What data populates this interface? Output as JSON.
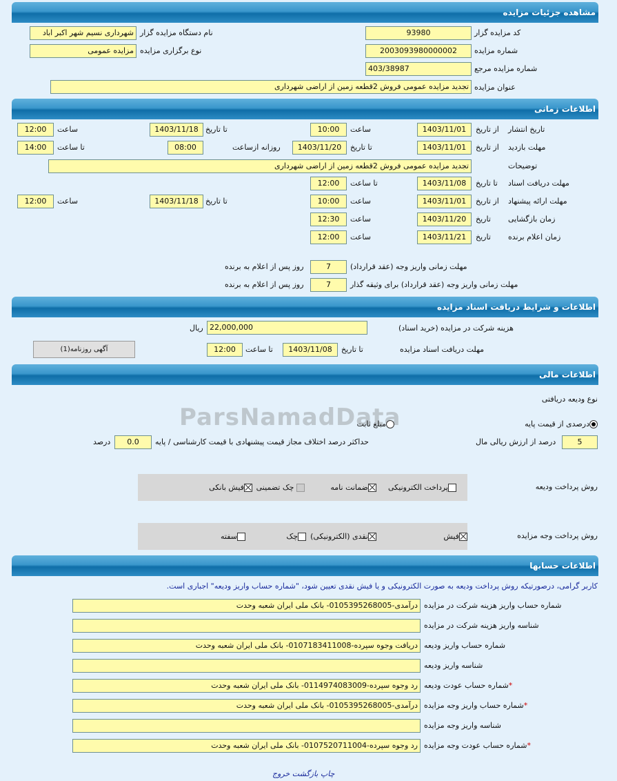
{
  "sections": {
    "details": "مشاهده جزئیات مزایده",
    "timing": "اطلاعات زمانی",
    "docs": "اطلاعات و شرایط دریافت اسناد مزایده",
    "financial": "اطلاعات مالی",
    "accounts": "اطلاعات حسابها"
  },
  "details": {
    "code_label": "کد مزایده گزار",
    "code": "93980",
    "org_label": "نام دستگاه مزایده گزار",
    "org": "شهرداری نسیم شهر اکبر اباد",
    "number_label": "شماره مزایده",
    "number": "2003093980000002",
    "type_label": "نوع برگزاری مزایده",
    "type": "مزایده عمومی",
    "ref_label": "شماره مزایده مرجع",
    "ref": "403/38987",
    "title_label": "عنوان مزایده",
    "title": "تجدید مزایده عمومی فروش 2قطعه زمین از اراضی شهرداری"
  },
  "timing": {
    "from_date": "از تاریخ",
    "to_date": "تا تاریخ",
    "date": "تاریخ",
    "time": "ساعت",
    "to_time": "تا ساعت",
    "daily_from": "روزانه ازساعت",
    "publish": {
      "label": "تاریخ انتشار",
      "from": "1403/11/01",
      "from_time": "10:00",
      "to": "1403/11/18",
      "to_time": "12:00"
    },
    "visit": {
      "label": "مهلت بازدید",
      "from": "1403/11/01",
      "to": "1403/11/20",
      "daily_from": "08:00",
      "to_time": "14:00"
    },
    "desc": {
      "label": "توضیحات",
      "value": "تجدید مزایده عمومی فروش 2قطعه زمین از اراضی شهرداری"
    },
    "doc_receive": {
      "label": "مهلت دریافت اسناد",
      "to": "1403/11/08",
      "to_time": "12:00"
    },
    "offer": {
      "label": "مهلت ارائه پیشنهاد",
      "from": "1403/11/01",
      "from_time": "10:00",
      "to": "1403/11/18",
      "to_time": "12:00"
    },
    "opening": {
      "label": "زمان بازگشایی",
      "date": "1403/11/20",
      "time": "12:30"
    },
    "winner": {
      "label": "زمان اعلام برنده",
      "date": "1403/11/21",
      "time": "12:00"
    },
    "pay_deadline": {
      "label": "مهلت زمانی واریز وجه (عقد قرارداد)",
      "value": "7",
      "suffix": "روز پس از اعلام به برنده"
    },
    "pay_deadline_guarantee": {
      "label": "مهلت زمانی واریز وجه (عقد قرارداد) برای وثیقه گذار",
      "value": "7",
      "suffix": "روز پس از اعلام به برنده"
    }
  },
  "docs": {
    "fee_label": "هزینه شرکت در مزایده (خرید اسناد)",
    "fee": "22,000,000",
    "currency": "ریال",
    "deadline_label": "مهلت دریافت اسناد مزایده",
    "to_date_label": "تا تاریخ",
    "to_date": "1403/11/08",
    "to_time_label": "تا ساعت",
    "to_time": "12:00",
    "newspaper_button": "آگهی روزنامه(1)"
  },
  "financial": {
    "deposit_type_label": "نوع ودیعه دریافتی",
    "radio_percent": "درصدی از قیمت پایه",
    "radio_percent_checked": true,
    "radio_fixed": "مبلغ ثابت",
    "radio_fixed_checked": false,
    "percent_value": "5",
    "percent_label": "درصد از ارزش ریالی مال",
    "max_diff_label": "حداکثر درصد اختلاف مجاز قیمت پیشنهادی با قیمت کارشناسی / پایه",
    "max_diff": "0.0",
    "max_diff_unit": "درصد",
    "deposit_method_label": "روش پرداخت ودیعه",
    "deposit_methods": [
      {
        "label": "پرداخت الکترونیکی",
        "checked": false
      },
      {
        "label": "ضمانت نامه",
        "checked": true
      },
      {
        "label": "چک تضمینی",
        "checked": false,
        "disabled": true
      },
      {
        "label": "فیش بانکی",
        "checked": true
      }
    ],
    "payment_method_label": "روش پرداخت وجه مزایده",
    "payment_methods": [
      {
        "label": "فیش",
        "checked": true
      },
      {
        "label": "نقدی (الکترونیکی)",
        "checked": true
      },
      {
        "label": "چک",
        "checked": false
      },
      {
        "label": "سفته",
        "checked": false
      }
    ]
  },
  "accounts": {
    "notice": "کاربر گرامی، درصورتیکه روش پرداخت ودیعه به صورت الکترونیکی و یا فیش نقدی تعیین شود، \"شماره حساب واریز ودیعه\" اجباری است.",
    "rows": [
      {
        "label": "شماره حساب واریز هزینه شرکت در مزایده",
        "value": "درآمدی-0105395268005- بانک ملی ایران شعبه وحدت",
        "required": false
      },
      {
        "label": "شناسه واریز هزینه شرکت در مزایده",
        "value": "",
        "required": false
      },
      {
        "label": "شماره حساب واریز ودیعه",
        "value": "دریافت وجوه سپرده-0107183411008- بانک ملی ایران شعبه وحدت",
        "required": false
      },
      {
        "label": "شناسه واریز ودیعه",
        "value": "",
        "required": false
      },
      {
        "label": "شماره حساب عودت ودیعه",
        "value": "رد وجوه سپرده-0114974083009- بانک ملی ایران شعبه وحدت",
        "required": true
      },
      {
        "label": "شماره حساب واریز وجه مزایده",
        "value": "درآمدی-0105395268005- بانک ملی ایران شعبه وحدت",
        "required": true
      },
      {
        "label": "شناسه واریز وجه مزایده",
        "value": "",
        "required": false
      },
      {
        "label": "شماره حساب عودت وجه مزایده",
        "value": "رد وجوه سپرده-0107520711004- بانک ملی ایران شعبه وحدت",
        "required": true
      }
    ],
    "required_mark": "*"
  },
  "footer": {
    "print": "چاپ",
    "back": "بازگشت",
    "exit": "خروج"
  },
  "watermark": "ParsNamadData",
  "colors": {
    "header": "#1a7ab5",
    "field": "#fffbac",
    "background": "#e4f1fb",
    "link": "#1a2a9c"
  }
}
